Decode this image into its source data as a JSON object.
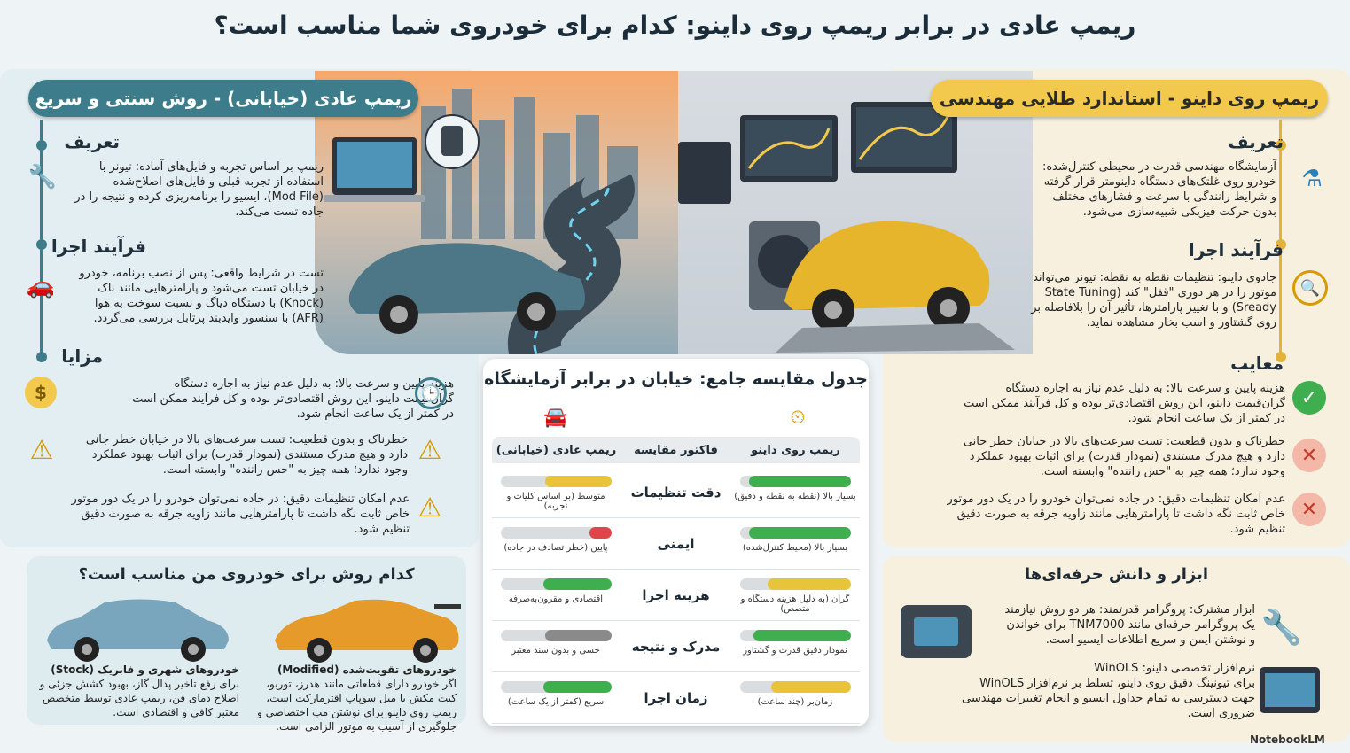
{
  "title": "ریمپ عادی در برابر ریمپ روی داینو: کدام برای خودروی شما مناسب است؟",
  "left": {
    "ribbon": "ریمپ عادی (خیابانی) - روش سنتی و سریع",
    "definition_h": "تعریف",
    "definition_lines": [
      "ریمپ بر اساس تجربه و فایل‌های آماده: تیونر با",
      "استفاده از تجربه قبلی و فایل‌های اصلاح‌شده",
      "(Mod File)، ایسیو را برنامه‌ریزی کرده و نتیجه را در",
      "جاده تست می‌کند."
    ],
    "process_h": "فرآیند اجرا",
    "process_lines": [
      "تست در شرایط واقعی: پس از نصب برنامه، خودرو",
      "در خیابان تست می‌شود و پارامترهایی مانند ناک",
      "(Knock) با دستگاه دیاگ و نسبت سوخت به هوا",
      "(AFR) با سنسور وایدبند پرتابل بررسی می‌گردد."
    ],
    "benefits_h": "مزایا",
    "item1_lines": [
      "هزینه پایین و سرعت بالا: به دلیل عدم نیاز به اجاره دستگاه",
      "گران‌قیمت داینو، این روش اقتصادی‌تر بوده و کل فرآیند ممکن است",
      "در کمتر از یک ساعت انجام شود."
    ],
    "item2_lines": [
      "خطرناک و بدون قطعیت: تست سرعت‌های بالا در خیابان خطر جانی",
      "دارد و هیچ مدرک مستندی (نمودار قدرت) برای اثبات بهبود عملکرد",
      "وجود ندارد؛ همه چیز به \"حس راننده\" وابسته است."
    ],
    "item3_lines": [
      "عدم امکان تنظیمات دقیق: در جاده نمی‌توان خودرو را در یک دور موتور",
      "خاص ثابت نگه داشت تا پارامترهایی مانند زاویه جرقه به صورت دقیق",
      "تنظیم شود."
    ]
  },
  "right": {
    "ribbon": "ریمپ روی داینو - استاندارد طلایی مهندسی",
    "definition_h": "تعریف",
    "definition_lines": [
      "آزمایشگاه مهندسی قدرت در محیطی کنترل‌شده:",
      "خودرو روی غلتک‌های دستگاه داینومتر قرار گرفته",
      "و شرایط رانندگی با سرعت و فشارهای مختلف",
      "بدون حرکت فیزیکی شبیه‌سازی می‌شود."
    ],
    "process_h": "فرآیند اجرا",
    "process_lines": [
      "جادوی داینو: تنظیمات نقطه به نقطه: تیونر می‌تواند",
      "موتور را در هر دوری \"قفل\" کند (State Tuning",
      "Sready) و با تغییر پارامترها، تأثیر آن را بلافاصله بر",
      "روی گشتاور و اسب بخار مشاهده نماید."
    ],
    "drawbacks_h": "معایب",
    "item1_lines": [
      "هزینه پایین و سرعت بالا: به دلیل عدم نیاز به اجاره دستگاه",
      "گران‌قیمت داینو، این روش اقتصادی‌تر بوده و کل فرآیند ممکن است",
      "در کمتر از یک ساعت انجام شود."
    ],
    "item2_lines": [
      "خطرناک و بدون قطعیت: تست سرعت‌های بالا در خیابان خطر جانی",
      "دارد و هیچ مدرک مستندی (نمودار قدرت) برای اثبات بهبود عملکرد",
      "وجود ندارد؛ همه چیز به \"حس راننده\" وابسته است."
    ],
    "item3_lines": [
      "عدم امکان تنظیمات دقیق: در جاده نمی‌توان خودرو را در یک دور موتور",
      "خاص ثابت نگه داشت تا پارامترهایی مانند زاویه جرقه به صورت دقیق",
      "تنظیم شود."
    ]
  },
  "table": {
    "title": "جدول مقایسه جامع: خیابان در برابر آزمایشگاه",
    "col_dyno": "ریمپ روی داینو",
    "col_factor": "فاکتور مقایسه",
    "col_street": "ریمپ عادی (خیابانی)",
    "rows": [
      {
        "factor": "دقت تنظیمات",
        "dyno_label": "بسیار بالا (نقطه به نقطه و دقیق)",
        "dyno_level": 0.92,
        "dyno_color": "#3fae4f",
        "street_label": "متوسط (بر اساس کلیات و تجربه)",
        "street_level": 0.6,
        "street_color": "#e8c43a"
      },
      {
        "factor": "ایمنی",
        "dyno_label": "بسیار بالا (محیط کنترل‌شده)",
        "dyno_level": 0.92,
        "dyno_color": "#3fae4f",
        "street_label": "پایین (خطر تصادف در جاده)",
        "street_level": 0.2,
        "street_color": "#e0454a"
      },
      {
        "factor": "هزینه اجرا",
        "dyno_label": "گران (به دلیل هزینه دستگاه و متصص)",
        "dyno_level": 0.75,
        "dyno_color": "#e8c43a",
        "street_label": "اقتصادی و مقرون‌به‌صرفه",
        "street_level": 0.62,
        "street_color": "#3fae4f"
      },
      {
        "factor": "مدرک و نتیجه",
        "dyno_label": "نمودار دقیق قدرت و گشتاور",
        "dyno_level": 0.88,
        "dyno_color": "#3fae4f",
        "street_label": "حسی و بدون سند معتبر",
        "street_level": 0.6,
        "street_color": "#8a8a8a"
      },
      {
        "factor": "زمان اجرا",
        "dyno_label": "زمان‌بر (چند ساعت)",
        "dyno_level": 0.72,
        "dyno_color": "#e8c43a",
        "street_label": "سریع (کمتر از یک ساعت)",
        "street_level": 0.62,
        "street_color": "#3fae4f"
      }
    ]
  },
  "which": {
    "title": "کدام روش برای خودروی من مناسب است؟",
    "stock_lines": [
      "خودروهای شهری و فابریک (Stock)",
      "برای رفع تاخیر پدال گاز، بهبود کشش جزئی و",
      "اصلاح دمای فن، ریمپ عادی توسط متخصص",
      "معتبر کافی و اقتصادی است."
    ],
    "modified_lines": [
      "خودروهای تقویت‌شده (Modified)",
      "اگر خودرو دارای قطعاتی مانند هدرز، توربو،",
      "کیت مکش یا میل سوپاپ اقترمارکت است،",
      "ریمپ روی داینو برای نوشتن مپ اختصاصی و",
      "جلوگیری از آسیب به موتور الزامی است."
    ]
  },
  "tools": {
    "title": "ابزار و دانش حرفه‌ای‌ها",
    "item1_lines": [
      "ابزار مشترک: پروگرامر قدرتمند: هر دو روش نیازمند",
      "یک پروگرامر حرفه‌ای مانند TNM7000 برای خواندن",
      "و نوشتن ایمن و سریع اطلاعات ایسیو است."
    ],
    "item2_lines": [
      "نرم‌افزار تخصصی داینو: WinOLS",
      "برای تیونینگ دقیق روی داینو، تسلط بر نرم‌افزار WinOLS",
      "جهت دسترسی به تمام جداول ایسیو و انجام تغییرات مهندسی",
      "ضروری است."
    ]
  },
  "footer": "NotebookLM",
  "colors": {
    "teal": "#3c7c8b",
    "gold": "#f2c94c",
    "green": "#3fae4f",
    "red": "#e0454a"
  }
}
